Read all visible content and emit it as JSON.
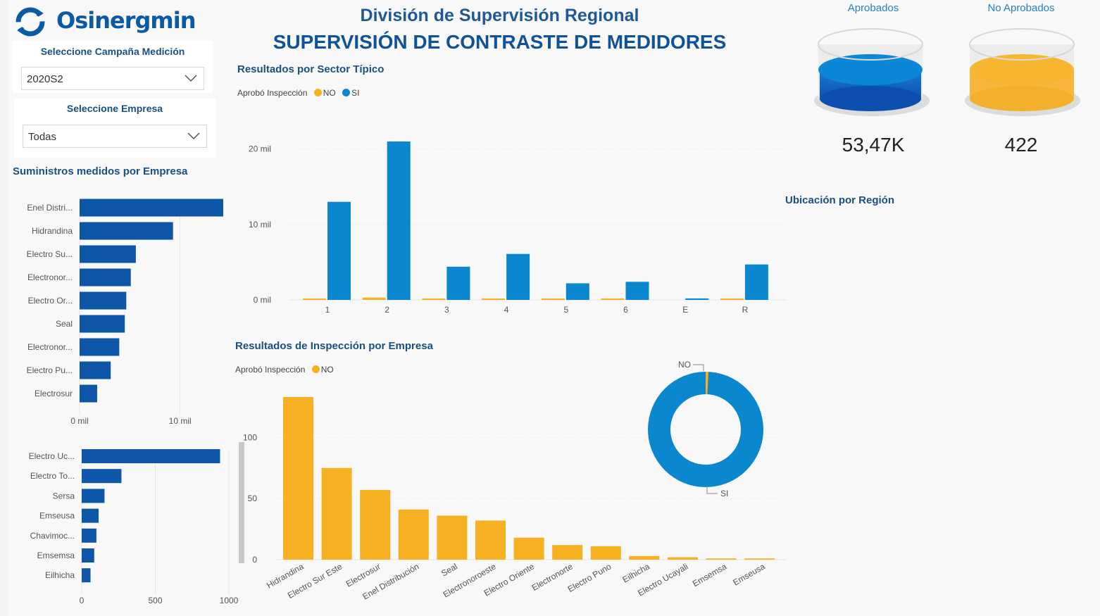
{
  "header": {
    "logo_text": "Osinergmin",
    "title_line1": "División de Supervisión Regional",
    "title_line2": "SUPERVISIÓN DE CONTRASTE DE MEDIDORES"
  },
  "slicers": {
    "campaign": {
      "label": "Seleccione Campaña Medición",
      "value": "2020S2"
    },
    "company": {
      "label": "Seleccione Empresa",
      "value": "Todas"
    }
  },
  "kpis": {
    "approved": {
      "label": "Aprobados",
      "value": "53,47K",
      "color": "#0a87d6"
    },
    "not_approved": {
      "label": "No Aprobados",
      "value": "422",
      "color": "#f7b530"
    }
  },
  "map": {
    "title": "Ubicación por Región"
  },
  "colors": {
    "no": "#f6b122",
    "si": "#0a87cf",
    "company_bar": "#0e57a8"
  },
  "chart_data": [
    {
      "type": "bar",
      "orientation": "horizontal",
      "title": "Suministros medidos por Empresa",
      "categories": [
        "Enel Distri...",
        "Hidrandina",
        "Electro Su...",
        "Electronor...",
        "Electro Or...",
        "Seal",
        "Electronor...",
        "Electro Pu...",
        "Electrosur"
      ],
      "values": [
        14300,
        9300,
        5600,
        5100,
        4650,
        4500,
        3950,
        3100,
        1750
      ],
      "xlim": [
        0,
        14300
      ],
      "ticks": [
        {
          "v": 0,
          "label": "0 mil"
        },
        {
          "v": 10000,
          "label": "10 mil"
        }
      ]
    },
    {
      "type": "bar",
      "orientation": "horizontal",
      "categories": [
        "Electro Uc...",
        "Electro To...",
        "Sersa",
        "Emseusa",
        "Chavimoc...",
        "Emsemsa",
        "Eilhicha"
      ],
      "values": [
        940,
        270,
        155,
        115,
        100,
        85,
        60
      ],
      "xlim": [
        0,
        1000
      ],
      "ticks": [
        {
          "v": 0,
          "label": "0"
        },
        {
          "v": 500,
          "label": "500"
        },
        {
          "v": 1000,
          "label": "1000"
        }
      ]
    },
    {
      "type": "bar",
      "title": "Resultados por Sector Típico",
      "legend_title": "Aprobó Inspección",
      "categories": [
        "1",
        "2",
        "3",
        "4",
        "5",
        "6",
        "E",
        "R"
      ],
      "series": [
        {
          "name": "NO",
          "values": [
            80,
            300,
            60,
            70,
            50,
            40,
            0,
            60
          ]
        },
        {
          "name": "SI",
          "values": [
            13000,
            21000,
            4400,
            6100,
            2200,
            2400,
            200,
            4700
          ]
        }
      ],
      "ylim": [
        0,
        21000
      ],
      "ticks": [
        {
          "v": 0,
          "label": "0 mil"
        },
        {
          "v": 10000,
          "label": "10 mil"
        },
        {
          "v": 20000,
          "label": "20 mil"
        }
      ]
    },
    {
      "type": "bar",
      "title": "Resultados de Inspección por Empresa",
      "legend_title": "Aprobó Inspección",
      "categories": [
        "Hidrandina",
        "Electro Sur Este",
        "Electrosur",
        "Enel Distribución",
        "Seal",
        "Electronoroeste",
        "Electro Oriente",
        "Electronorte",
        "Electro Puno",
        "Eilhicha",
        "Electro Ucayali",
        "Emsemsa",
        "Emseusa"
      ],
      "series": [
        {
          "name": "NO",
          "values": [
            133,
            75,
            57,
            41,
            36,
            32,
            18,
            12,
            11,
            3,
            2,
            1,
            1
          ]
        }
      ],
      "ylim": [
        0,
        133
      ],
      "ticks": [
        {
          "v": 0,
          "label": "0"
        },
        {
          "v": 50,
          "label": "50"
        },
        {
          "v": 100,
          "label": "100"
        }
      ]
    },
    {
      "type": "pie",
      "labels": [
        "NO",
        "SI"
      ],
      "values": [
        422,
        53470
      ]
    }
  ]
}
